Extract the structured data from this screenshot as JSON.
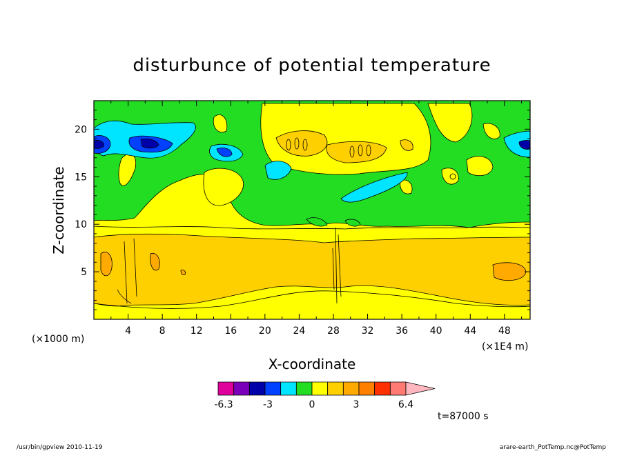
{
  "chart_data": {
    "type": "heatmap",
    "title": "disturbunce of potential temperature",
    "xlabel": "X-coordinate",
    "ylabel": "Z-coordinate",
    "x_unit_left": "(×1000 m)",
    "x_unit_right": "(×1E4 m)",
    "xlim": [
      0,
      51
    ],
    "ylim": [
      0,
      23
    ],
    "x_ticks": [
      4,
      8,
      12,
      16,
      20,
      24,
      28,
      32,
      36,
      40,
      44,
      48
    ],
    "y_ticks": [
      5,
      10,
      15,
      20
    ],
    "colorbar": {
      "levels": [
        -6.3,
        -5.5,
        -4.6,
        -3.0,
        -2.2,
        -1.2,
        -0.4,
        0,
        0.8,
        1.6,
        2.4,
        3.2,
        4.0,
        4.8,
        6.4
      ],
      "labels": [
        "-6.3",
        "-3",
        "0",
        "3",
        "6.4"
      ],
      "label_values": [
        -6.3,
        -3,
        0,
        3,
        6.4
      ],
      "colors": [
        "#e0009c",
        "#7b00ba",
        "#0000a8",
        "#0040ff",
        "#00e5ff",
        "#22dd22",
        "#ffff00",
        "#ffd000",
        "#ffaa00",
        "#ff7f00",
        "#ff3000",
        "#ff7a72",
        "#ffb8c0"
      ]
    },
    "annotation": "t=87000 s"
  },
  "footer": {
    "left": "/usr/bin/gpview  2010-11-19",
    "right": "arare-earth_PotTemp.nc@PotTemp"
  }
}
